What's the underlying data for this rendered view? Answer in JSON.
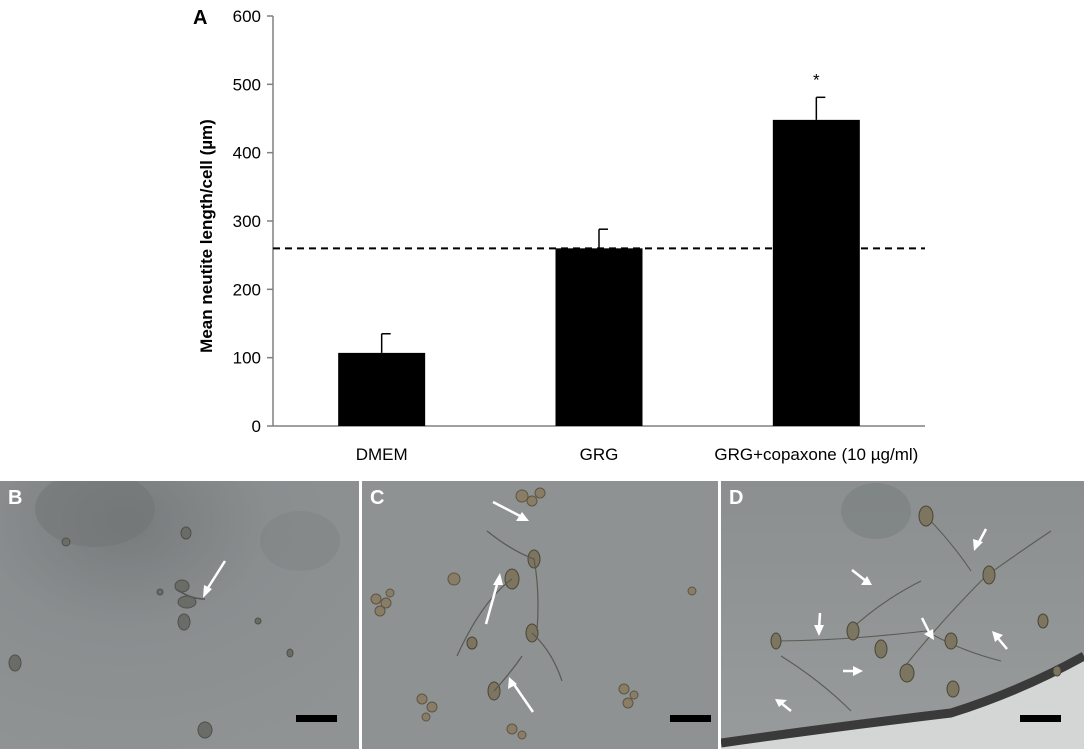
{
  "chart_data": {
    "type": "bar",
    "panel_label": "A",
    "categories": [
      "DMEM",
      "GRG",
      "GRG+copaxone (10 µg/ml)"
    ],
    "values": [
      107,
      260,
      448
    ],
    "errors": [
      28,
      28,
      33
    ],
    "significance": [
      "",
      "",
      "*"
    ],
    "reference_line": 260,
    "ylabel": "Mean neutite length/cell (µm)",
    "xlabel": "",
    "ylim": [
      0,
      600
    ],
    "yticks": [
      "0",
      "100",
      "200",
      "300",
      "400",
      "500",
      "600"
    ],
    "grid": false,
    "bar_color": "#000000"
  },
  "panels": [
    {
      "label": "B"
    },
    {
      "label": "C"
    },
    {
      "label": "D"
    }
  ]
}
